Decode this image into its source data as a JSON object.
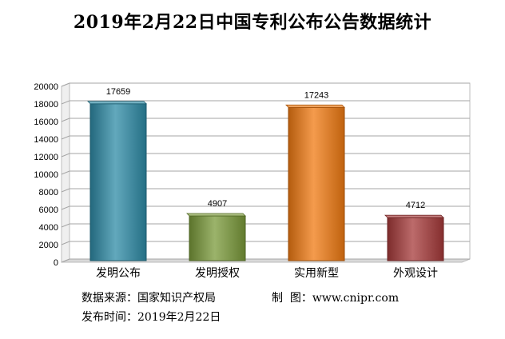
{
  "chart_data": {
    "type": "bar",
    "title": "2019年2月22日中国专利公布公告数据统计",
    "categories": [
      "发明公布",
      "发明授权",
      "实用新型",
      "外观设计"
    ],
    "values": [
      17659,
      4907,
      17243,
      4712
    ],
    "data_labels": [
      "17659",
      "4907",
      "17243",
      "4712"
    ],
    "bar_colors": [
      "#2e8ba6",
      "#7a9a3a",
      "#f07a12",
      "#a63a3a"
    ],
    "ylim": [
      0,
      20000
    ],
    "yticks": [
      0,
      2000,
      4000,
      6000,
      8000,
      10000,
      12000,
      14000,
      16000,
      18000,
      20000
    ],
    "grid": true,
    "legend": "none"
  },
  "footer": {
    "source_label": "数据来源：",
    "source_value": "国家知识产权局",
    "maker_label": "制  图：",
    "maker_value": "www.cnipr.com",
    "date_label": "发布时间：",
    "date_value": "2019年2月22日"
  }
}
